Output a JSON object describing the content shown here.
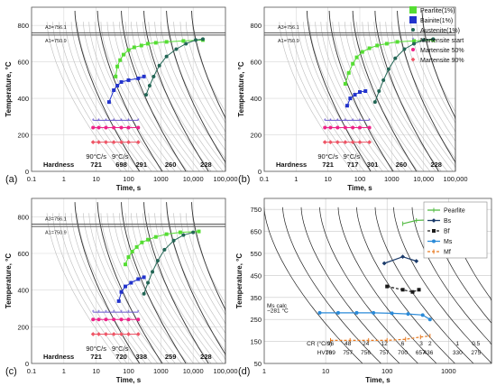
{
  "panels": [
    {
      "id": "a",
      "label": "(a)",
      "xlabel": "Time, s",
      "ylabel": "Temperature, °C",
      "yticks": [
        0,
        200,
        400,
        600,
        800
      ],
      "xticks": [
        "0.1",
        "1",
        "10",
        "100",
        "1000",
        "10,000",
        "100,000"
      ],
      "a3": "A3=756.1",
      "a1": "A1=750.9",
      "hardness_label": "Hardness",
      "hardness": [
        {
          "x": 10,
          "v": "721"
        },
        {
          "x": 60,
          "v": "698"
        },
        {
          "x": 250,
          "v": "291"
        },
        {
          "x": 2000,
          "v": "260"
        },
        {
          "x": 25000,
          "v": "228"
        }
      ],
      "rates": [
        {
          "x": 10,
          "v": "90°C/s"
        },
        {
          "x": 55,
          "v": "9°C/s"
        }
      ]
    },
    {
      "id": "b",
      "label": "(b)",
      "xlabel": "Time, s",
      "ylabel": "Temperature, °C",
      "yticks": [
        0,
        200,
        400,
        600,
        800
      ],
      "xticks": [
        "0.1",
        "1",
        "10",
        "100",
        "1000",
        "10,000",
        "100,000"
      ],
      "a3": "A3=756.1",
      "a1": "A1=750.9",
      "hardness_label": "Hardness",
      "hardness": [
        {
          "x": 10,
          "v": "721"
        },
        {
          "x": 60,
          "v": "717"
        },
        {
          "x": 250,
          "v": "301"
        },
        {
          "x": 2000,
          "v": "260"
        },
        {
          "x": 25000,
          "v": "228"
        }
      ],
      "rates": [
        {
          "x": 10,
          "v": "90°C/s"
        },
        {
          "x": 55,
          "v": "9°C/s"
        }
      ]
    },
    {
      "id": "c",
      "label": "(c)",
      "xlabel": "Time, s",
      "ylabel": "Temperature, °C",
      "yticks": [
        0,
        200,
        400,
        600,
        800
      ],
      "xticks": [
        "0.1",
        "1",
        "10",
        "100",
        "1000",
        "10,000",
        "100,000"
      ],
      "a3": "A3=756.1",
      "a1": "A1=750.9",
      "hardness_label": "Hardness",
      "hardness": [
        {
          "x": 10,
          "v": "721"
        },
        {
          "x": 60,
          "v": "720"
        },
        {
          "x": 250,
          "v": "338"
        },
        {
          "x": 2000,
          "v": "259"
        },
        {
          "x": 25000,
          "v": "228"
        }
      ],
      "rates": [
        {
          "x": 10,
          "v": "90°C/s"
        },
        {
          "x": 55,
          "v": "9°C/s"
        }
      ]
    },
    {
      "id": "d",
      "label": "(d)",
      "xlabel": "Time, s",
      "ylabel": "Temperature, °C",
      "yticks": [
        50,
        150,
        250,
        350,
        450,
        550,
        650,
        750
      ],
      "xticks": [
        "1",
        "10",
        "100",
        "1000"
      ],
      "ms_calc_1": "Ms calc",
      "ms_calc_2": "~281 °C",
      "cr_label": "CR (°C/s)",
      "hv_label": "HV10",
      "cr": [
        {
          "x": 12,
          "v": "96"
        },
        {
          "x": 23,
          "v": "48"
        },
        {
          "x": 45,
          "v": "24"
        },
        {
          "x": 90,
          "v": "12"
        },
        {
          "x": 180,
          "v": "6"
        },
        {
          "x": 360,
          "v": "3"
        },
        {
          "x": 500,
          "v": "2"
        },
        {
          "x": 1400,
          "v": "1"
        },
        {
          "x": 2800,
          "v": "0.5"
        }
      ],
      "hv": [
        {
          "x": 12,
          "v": "769"
        },
        {
          "x": 23,
          "v": "757"
        },
        {
          "x": 45,
          "v": "756"
        },
        {
          "x": 90,
          "v": "757"
        },
        {
          "x": 180,
          "v": "700"
        },
        {
          "x": 350,
          "v": "657"
        },
        {
          "x": 470,
          "v": "436"
        },
        {
          "x": 1400,
          "v": "330"
        },
        {
          "x": 2800,
          "v": "275"
        }
      ]
    }
  ],
  "legend_abc": [
    {
      "label": "Pearlite(1%)",
      "color": "#55dd33",
      "marker": "square"
    },
    {
      "label": "Bainite(1%)",
      "color": "#2233cc",
      "marker": "square"
    },
    {
      "label": "Austenite(1%)",
      "color": "#226655",
      "marker": "circle"
    },
    {
      "label": "Martensite start",
      "color": "#6655cc",
      "marker": "star"
    },
    {
      "label": "Martensite 50%",
      "color": "#ee2288",
      "marker": "circle"
    },
    {
      "label": "Martensite 90%",
      "color": "#ee5566",
      "marker": "diamond"
    }
  ],
  "legend_d": [
    {
      "label": "Pearlite",
      "color": "#55bb44",
      "dash": false
    },
    {
      "label": "Bs",
      "color": "#1a3a6a",
      "dash": false
    },
    {
      "label": "Bf",
      "color": "#1a1a1a",
      "dash": true
    },
    {
      "label": "Ms",
      "color": "#2a8ad8",
      "dash": false
    },
    {
      "label": "Mf",
      "color": "#e87a20",
      "dash": true
    }
  ],
  "chart_data": [
    {
      "type": "line",
      "panel": "a",
      "xscale": "log",
      "xlim": [
        0.1,
        100000
      ],
      "ylim": [
        0,
        900
      ],
      "series": [
        {
          "name": "Pearlite(1%)",
          "x": [
            40,
            45,
            55,
            70,
            100,
            150,
            250,
            400,
            700,
            1500,
            5000,
            20000
          ],
          "y": [
            520,
            575,
            610,
            640,
            665,
            680,
            690,
            700,
            705,
            710,
            715,
            720
          ]
        },
        {
          "name": "Bainite(1%)",
          "x": [
            25,
            35,
            45,
            60,
            100,
            200,
            300
          ],
          "y": [
            380,
            445,
            470,
            490,
            500,
            510,
            520
          ]
        },
        {
          "name": "Austenite(1%)",
          "x": [
            350,
            450,
            600,
            900,
            1500,
            3000,
            6000,
            12000,
            20000
          ],
          "y": [
            420,
            470,
            520,
            580,
            630,
            670,
            700,
            720,
            725
          ]
        },
        {
          "name": "Martensite start",
          "x": [
            8,
            12,
            20,
            35,
            60,
            100,
            200
          ],
          "y": [
            280,
            280,
            280,
            280,
            280,
            280,
            280
          ]
        },
        {
          "name": "Martensite 50%",
          "x": [
            8,
            12,
            20,
            35,
            60,
            100,
            200
          ],
          "y": [
            240,
            240,
            240,
            240,
            240,
            240,
            240
          ]
        },
        {
          "name": "Martensite 90%",
          "x": [
            8,
            12,
            20,
            35,
            60,
            100,
            200
          ],
          "y": [
            160,
            160,
            160,
            160,
            160,
            160,
            160
          ]
        }
      ]
    },
    {
      "type": "line",
      "panel": "b",
      "xscale": "log",
      "xlim": [
        0.1,
        100000
      ],
      "ylim": [
        0,
        900
      ],
      "series": [
        {
          "name": "Pearlite(1%)",
          "x": [
            35,
            45,
            60,
            80,
            120,
            200,
            350,
            700,
            1500,
            5000,
            20000
          ],
          "y": [
            480,
            540,
            590,
            625,
            655,
            675,
            690,
            700,
            710,
            715,
            720
          ]
        },
        {
          "name": "Bainite(1%)",
          "x": [
            40,
            50,
            70,
            100,
            150
          ],
          "y": [
            360,
            400,
            420,
            435,
            440
          ]
        },
        {
          "name": "Austenite(1%)",
          "x": [
            300,
            400,
            550,
            800,
            1300,
            2500,
            5000,
            10000,
            20000
          ],
          "y": [
            380,
            440,
            500,
            560,
            620,
            670,
            700,
            720,
            725
          ]
        },
        {
          "name": "Martensite start",
          "x": [
            8,
            12,
            20,
            35,
            60,
            100,
            200
          ],
          "y": [
            280,
            280,
            280,
            280,
            280,
            280,
            280
          ]
        },
        {
          "name": "Martensite 50%",
          "x": [
            8,
            12,
            20,
            35,
            60,
            100,
            200
          ],
          "y": [
            240,
            240,
            240,
            240,
            240,
            240,
            240
          ]
        },
        {
          "name": "Martensite 90%",
          "x": [
            8,
            12,
            20,
            35,
            60,
            100,
            200
          ],
          "y": [
            160,
            160,
            160,
            160,
            160,
            160,
            160
          ]
        }
      ]
    },
    {
      "type": "line",
      "panel": "c",
      "xscale": "log",
      "xlim": [
        0.1,
        100000
      ],
      "ylim": [
        0,
        900
      ],
      "series": [
        {
          "name": "Pearlite(1%)",
          "x": [
            80,
            100,
            130,
            180,
            260,
            400,
            700,
            1500,
            4000,
            15000
          ],
          "y": [
            540,
            580,
            610,
            635,
            660,
            675,
            690,
            705,
            715,
            720
          ]
        },
        {
          "name": "Bainite(1%)",
          "x": [
            50,
            60,
            80,
            120,
            200,
            300
          ],
          "y": [
            340,
            390,
            420,
            440,
            460,
            470
          ]
        },
        {
          "name": "Austenite(1%)",
          "x": [
            300,
            400,
            550,
            800,
            1300,
            2500,
            5000,
            10000
          ],
          "y": [
            380,
            440,
            500,
            560,
            620,
            670,
            700,
            715
          ]
        },
        {
          "name": "Martensite start",
          "x": [
            8,
            12,
            20,
            35,
            60,
            100,
            200
          ],
          "y": [
            280,
            280,
            280,
            280,
            280,
            280,
            280
          ]
        },
        {
          "name": "Martensite 50%",
          "x": [
            8,
            12,
            20,
            35,
            60,
            100,
            200
          ],
          "y": [
            240,
            240,
            240,
            240,
            240,
            240,
            240
          ]
        },
        {
          "name": "Martensite 90%",
          "x": [
            8,
            12,
            20,
            35,
            60,
            100,
            200
          ],
          "y": [
            160,
            160,
            160,
            160,
            160,
            160,
            160
          ]
        }
      ]
    },
    {
      "type": "line",
      "panel": "d",
      "xscale": "log",
      "xlim": [
        1,
        5000
      ],
      "ylim": [
        50,
        800
      ],
      "series": [
        {
          "name": "Pearlite",
          "x": [
            180,
            300,
            500
          ],
          "y": [
            685,
            700,
            702
          ]
        },
        {
          "name": "Bs",
          "x": [
            90,
            180,
            300
          ],
          "y": [
            505,
            535,
            515
          ]
        },
        {
          "name": "Bf",
          "x": [
            100,
            180,
            260,
            330
          ],
          "y": [
            400,
            385,
            375,
            385
          ]
        },
        {
          "name": "Ms",
          "x": [
            8,
            16,
            32,
            60,
            120,
            220,
            380,
            500
          ],
          "y": [
            280,
            280,
            280,
            280,
            278,
            275,
            270,
            250
          ]
        },
        {
          "name": "Mf",
          "x": [
            12,
            25,
            50,
            100,
            200,
            350,
            500
          ],
          "y": [
            155,
            155,
            155,
            155,
            160,
            170,
            175
          ]
        }
      ]
    }
  ]
}
